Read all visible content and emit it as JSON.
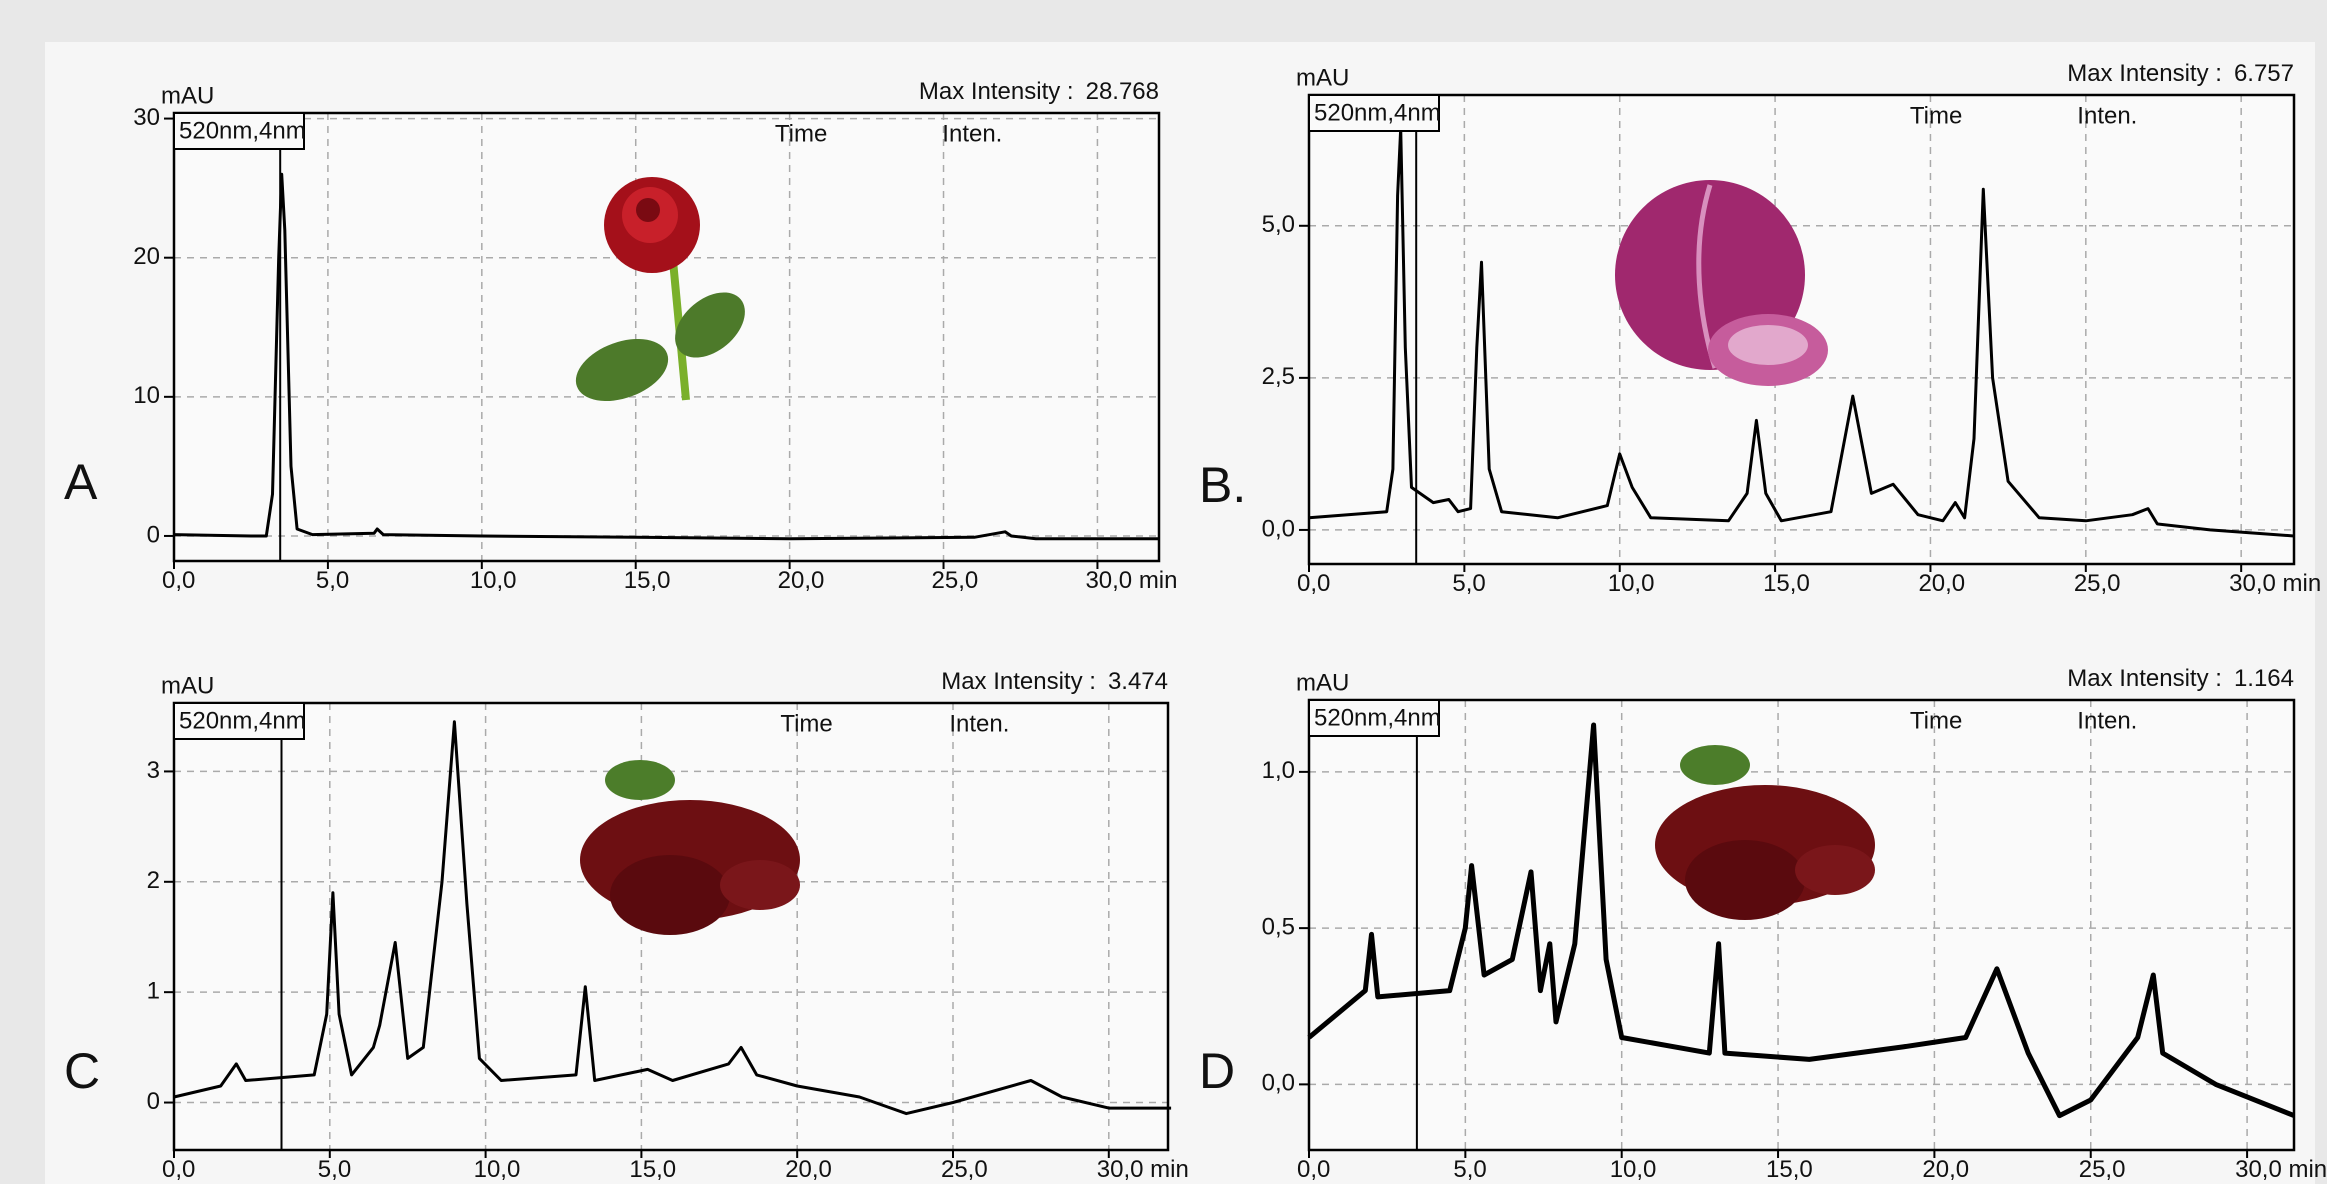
{
  "chart_data": [
    {
      "type": "line",
      "panel_label": "A",
      "y_label": "mAU",
      "max_intensity_label": "Max Intensity :",
      "max_intensity": 28.768,
      "wavelength": "520nm,4nm",
      "table_headers": [
        "Time",
        "Inten."
      ],
      "marker_x": 3.45,
      "x": [
        0,
        2.5,
        3.0,
        3.2,
        3.4,
        3.5,
        3.6,
        3.8,
        4.0,
        4.5,
        6.5,
        6.6,
        6.8,
        10,
        15,
        20,
        26,
        27,
        27.2,
        28,
        32
      ],
      "series": [
        {
          "color": "#000000",
          "values": [
            0.1,
            0,
            0,
            3,
            20,
            26,
            22,
            5,
            0.5,
            0.1,
            0.2,
            0.5,
            0.1,
            0,
            -0.1,
            -0.2,
            -0.1,
            0.3,
            0,
            -0.2,
            -0.2
          ]
        }
      ],
      "xlim": [
        0,
        32
      ],
      "ylim": [
        -1.8,
        30.4
      ],
      "xticks": [
        {
          "value": 0,
          "label": "0,0"
        },
        {
          "value": 5,
          "label": "5,0"
        },
        {
          "value": 10,
          "label": "10,0"
        },
        {
          "value": 15,
          "label": "15,0"
        },
        {
          "value": 20,
          "label": "20,0"
        },
        {
          "value": 25,
          "label": "25,0"
        },
        {
          "value": 30,
          "label": "30,0 min"
        }
      ],
      "yticks": [
        0,
        10,
        20,
        30
      ],
      "grid": true
    },
    {
      "type": "line",
      "panel_label": "B.",
      "y_label": "mAU",
      "max_intensity_label": "Max Intensity :",
      "max_intensity": 6.757,
      "wavelength": "520nm,4nm",
      "table_headers": [
        "Time",
        "Inten."
      ],
      "marker_x": 3.45,
      "x": [
        0,
        2.5,
        2.7,
        2.85,
        2.95,
        3.1,
        3.3,
        4,
        4.5,
        4.8,
        5.2,
        5.4,
        5.55,
        5.8,
        6.2,
        8,
        9.6,
        10,
        10.4,
        11,
        13.5,
        14.1,
        14.4,
        14.7,
        15.2,
        16.8,
        17.5,
        18.1,
        18.8,
        19.6,
        20.4,
        20.8,
        21.1,
        21.4,
        21.7,
        22.0,
        22.5,
        23.5,
        25,
        26.5,
        27,
        27.3,
        29,
        31.7
      ],
      "series": [
        {
          "color": "#000000",
          "values": [
            0.2,
            0.3,
            1,
            5.5,
            6.6,
            3,
            0.7,
            0.45,
            0.5,
            0.3,
            0.35,
            3,
            4.4,
            1,
            0.3,
            0.2,
            0.4,
            1.25,
            0.7,
            0.2,
            0.15,
            0.6,
            1.8,
            0.6,
            0.15,
            0.3,
            2.2,
            0.6,
            0.75,
            0.25,
            0.15,
            0.45,
            0.2,
            1.5,
            5.6,
            2.5,
            0.8,
            0.2,
            0.15,
            0.25,
            0.35,
            0.1,
            0,
            -0.1
          ]
        }
      ],
      "xlim": [
        0,
        31.7
      ],
      "ylim": [
        -0.56,
        7.15
      ],
      "xticks": [
        {
          "value": 0,
          "label": "0,0"
        },
        {
          "value": 5,
          "label": "5,0"
        },
        {
          "value": 10,
          "label": "10,0"
        },
        {
          "value": 15,
          "label": "15,0"
        },
        {
          "value": 20,
          "label": "20,0"
        },
        {
          "value": 25,
          "label": "25,0"
        },
        {
          "value": 30,
          "label": "30,0 min"
        }
      ],
      "yticks": [
        {
          "value": 0,
          "label": "0,0"
        },
        {
          "value": 2.5,
          "label": "2,5"
        },
        {
          "value": 5,
          "label": "5,0"
        }
      ],
      "grid": true
    },
    {
      "type": "line",
      "panel_label": "C",
      "y_label": "mAU",
      "max_intensity_label": "Max Intensity :",
      "max_intensity": 3.474,
      "wavelength": "520nm,4nm",
      "table_headers": [
        "Time",
        "Inten."
      ],
      "marker_x": 3.45,
      "x": [
        0,
        1.5,
        2,
        2.3,
        4.5,
        4.9,
        5.1,
        5.3,
        5.7,
        6.4,
        6.6,
        7.1,
        7.5,
        8.0,
        8.6,
        9.0,
        9.4,
        9.8,
        10.5,
        12.9,
        13.2,
        13.5,
        15.2,
        16,
        17.8,
        18.2,
        18.7,
        20,
        22,
        23.5,
        25,
        27.5,
        28.5,
        30,
        32
      ],
      "series": [
        {
          "color": "#000000",
          "values": [
            0.05,
            0.15,
            0.35,
            0.2,
            0.25,
            0.8,
            1.9,
            0.8,
            0.25,
            0.5,
            0.7,
            1.45,
            0.4,
            0.5,
            2.0,
            3.45,
            1.8,
            0.4,
            0.2,
            0.25,
            1.05,
            0.2,
            0.3,
            0.2,
            0.35,
            0.5,
            0.25,
            0.15,
            0.05,
            -0.1,
            0,
            0.2,
            0.05,
            -0.05,
            -0.05
          ]
        }
      ],
      "xlim": [
        0,
        31.9
      ],
      "ylim": [
        -0.43,
        3.62
      ],
      "xticks": [
        {
          "value": 0,
          "label": "0,0"
        },
        {
          "value": 5,
          "label": "5,0"
        },
        {
          "value": 10,
          "label": "10,0"
        },
        {
          "value": 15,
          "label": "15,0"
        },
        {
          "value": 20,
          "label": "20,0"
        },
        {
          "value": 25,
          "label": "25,0"
        },
        {
          "value": 30,
          "label": "30,0 min"
        }
      ],
      "yticks": [
        0,
        1,
        2,
        3
      ],
      "grid": true
    },
    {
      "type": "line",
      "panel_label": "D",
      "y_label": "mAU",
      "max_intensity_label": "Max Intensity :",
      "max_intensity": 1.164,
      "wavelength": "520nm,4nm",
      "table_headers": [
        "Time",
        "Inten."
      ],
      "marker_x": 3.45,
      "x": [
        0,
        1.8,
        2.0,
        2.2,
        4.5,
        5.0,
        5.2,
        5.6,
        6.5,
        7.1,
        7.4,
        7.7,
        7.9,
        8.5,
        9.1,
        9.5,
        10,
        12.8,
        13.1,
        13.3,
        16,
        19,
        21,
        22,
        23,
        24,
        25,
        26.5,
        27,
        27.3,
        29,
        31.5
      ],
      "series": [
        {
          "color": "#000000",
          "values": [
            0.15,
            0.3,
            0.48,
            0.28,
            0.3,
            0.5,
            0.7,
            0.35,
            0.4,
            0.68,
            0.3,
            0.45,
            0.2,
            0.45,
            1.15,
            0.4,
            0.15,
            0.1,
            0.45,
            0.1,
            0.08,
            0.12,
            0.15,
            0.37,
            0.1,
            -0.1,
            -0.05,
            0.15,
            0.35,
            0.1,
            0,
            -0.1
          ]
        }
      ],
      "xlim": [
        0,
        31.5
      ],
      "ylim": [
        -0.21,
        1.23
      ],
      "xticks": [
        {
          "value": 0,
          "label": "0,0"
        },
        {
          "value": 5,
          "label": "5,0"
        },
        {
          "value": 10,
          "label": "10,0"
        },
        {
          "value": 15,
          "label": "15,0"
        },
        {
          "value": 20,
          "label": "20,0"
        },
        {
          "value": 25,
          "label": "25,0"
        },
        {
          "value": 30,
          "label": "30,0 min"
        }
      ],
      "yticks": [
        {
          "value": 0,
          "label": "0,0"
        },
        {
          "value": 0.5,
          "label": "0,5"
        },
        {
          "value": 1,
          "label": "1,0"
        }
      ],
      "grid": true
    }
  ]
}
